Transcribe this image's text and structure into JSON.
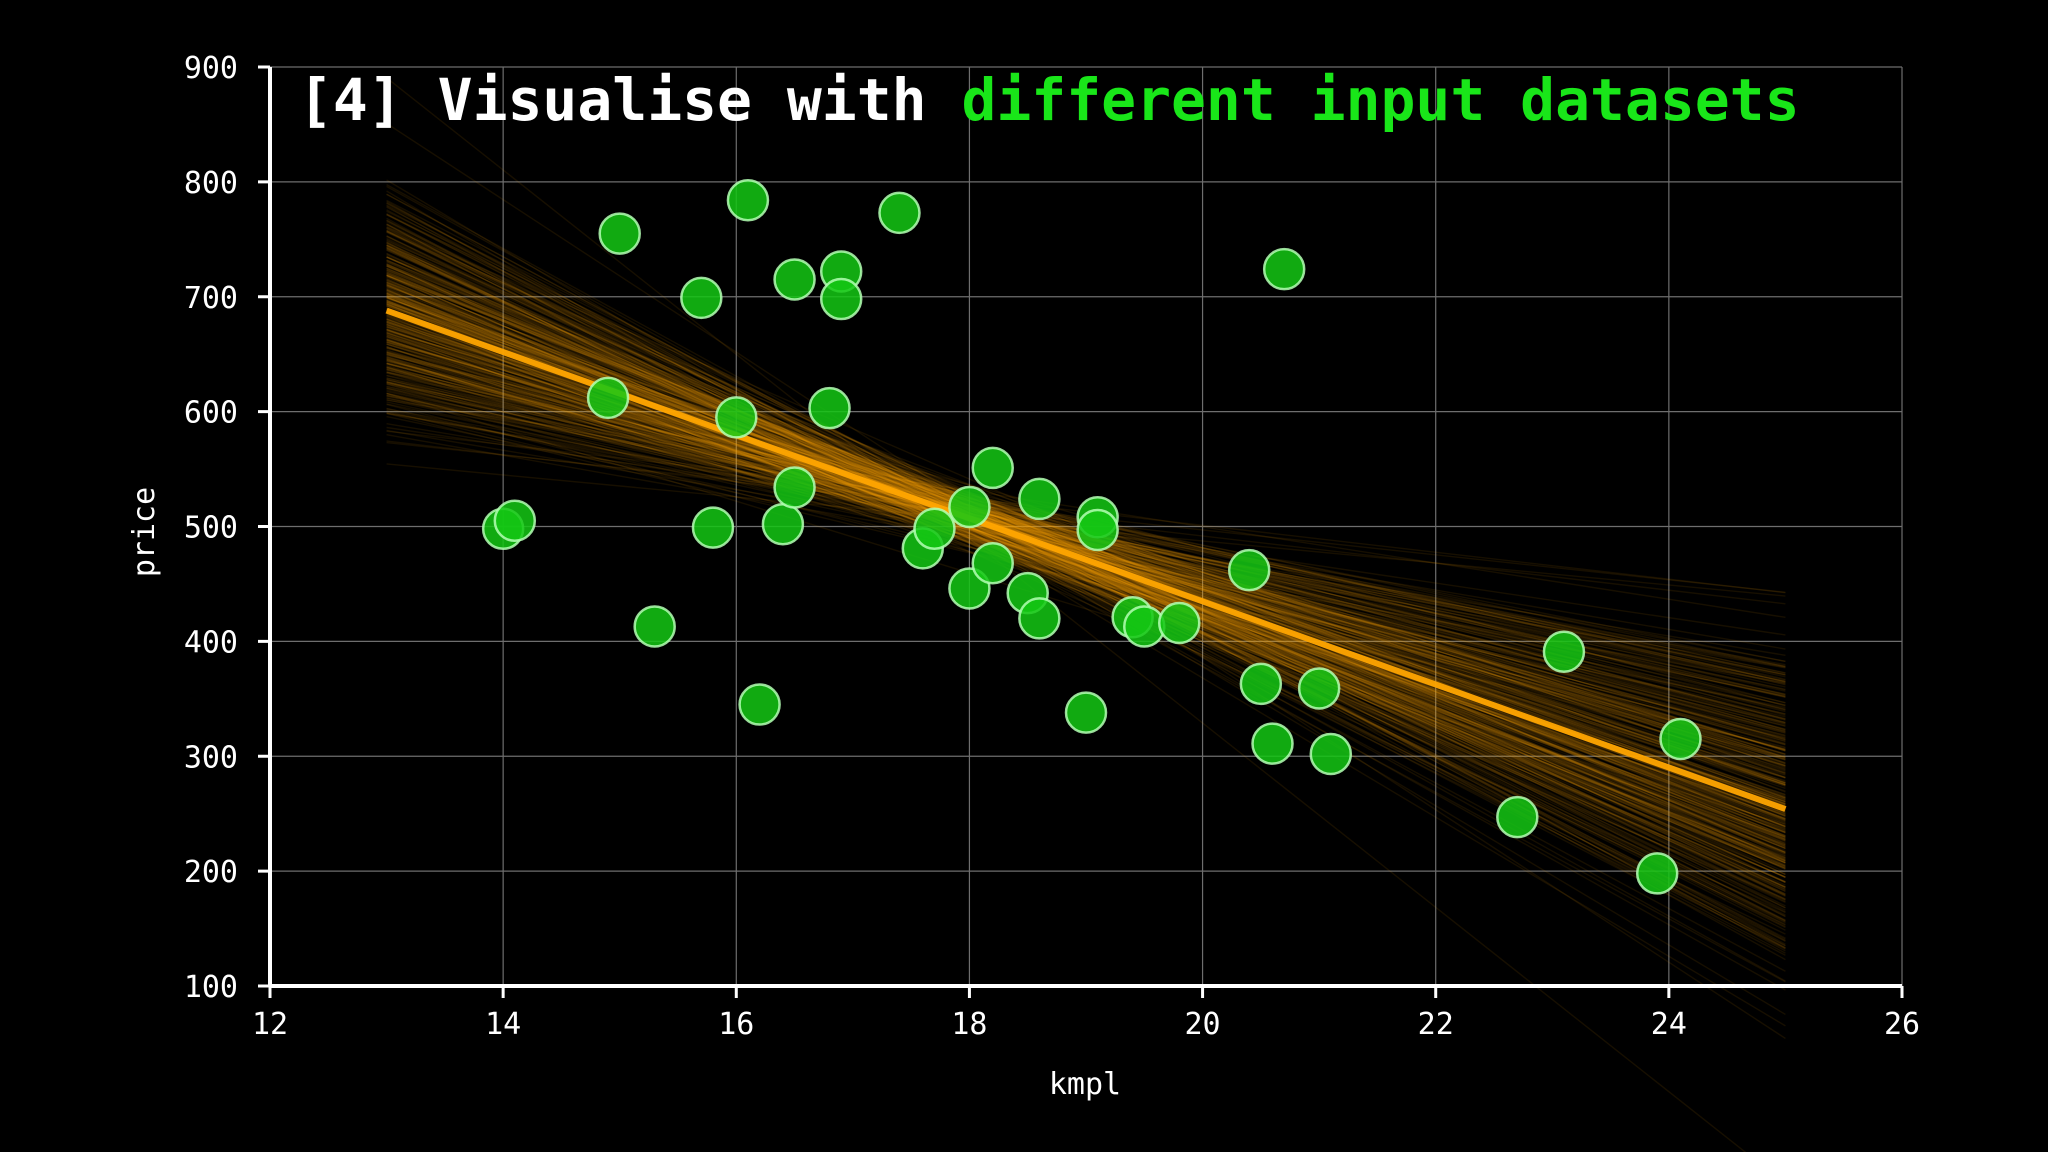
{
  "title": {
    "prefix": "[4] Visualise with ",
    "highlight": "different input datasets",
    "prefix_color": "#ffffff",
    "highlight_color": "#19e619"
  },
  "chart_data": {
    "type": "scatter",
    "xlabel": "kmpl",
    "ylabel": "price",
    "xlim": [
      12,
      26
    ],
    "ylim": [
      100,
      900
    ],
    "xticks": [
      12,
      14,
      16,
      18,
      20,
      22,
      24,
      26
    ],
    "yticks": [
      100,
      200,
      300,
      400,
      500,
      600,
      700,
      800,
      900
    ],
    "grid": true,
    "colors": {
      "points": "#14c814",
      "point_edge": "#b4ffb4",
      "fit_line": "#ffa500",
      "background": "#000000",
      "grid": "#6e6e6e"
    },
    "points": [
      {
        "x": 14.0,
        "y": 498
      },
      {
        "x": 14.1,
        "y": 505
      },
      {
        "x": 14.9,
        "y": 612
      },
      {
        "x": 15.0,
        "y": 755
      },
      {
        "x": 15.3,
        "y": 413
      },
      {
        "x": 15.7,
        "y": 699
      },
      {
        "x": 15.8,
        "y": 499
      },
      {
        "x": 16.0,
        "y": 595
      },
      {
        "x": 16.1,
        "y": 784
      },
      {
        "x": 16.2,
        "y": 345
      },
      {
        "x": 16.4,
        "y": 502
      },
      {
        "x": 16.5,
        "y": 534
      },
      {
        "x": 16.5,
        "y": 715
      },
      {
        "x": 16.8,
        "y": 603
      },
      {
        "x": 16.9,
        "y": 722
      },
      {
        "x": 16.9,
        "y": 698
      },
      {
        "x": 17.4,
        "y": 773
      },
      {
        "x": 17.6,
        "y": 481
      },
      {
        "x": 17.7,
        "y": 498
      },
      {
        "x": 18.0,
        "y": 517
      },
      {
        "x": 18.0,
        "y": 446
      },
      {
        "x": 18.2,
        "y": 551
      },
      {
        "x": 18.2,
        "y": 468
      },
      {
        "x": 18.5,
        "y": 442
      },
      {
        "x": 18.6,
        "y": 524
      },
      {
        "x": 18.6,
        "y": 420
      },
      {
        "x": 19.0,
        "y": 338
      },
      {
        "x": 19.1,
        "y": 508
      },
      {
        "x": 19.1,
        "y": 497
      },
      {
        "x": 19.4,
        "y": 421
      },
      {
        "x": 19.5,
        "y": 413
      },
      {
        "x": 19.8,
        "y": 416
      },
      {
        "x": 20.4,
        "y": 462
      },
      {
        "x": 20.5,
        "y": 363
      },
      {
        "x": 20.6,
        "y": 311
      },
      {
        "x": 20.7,
        "y": 724
      },
      {
        "x": 21.0,
        "y": 359
      },
      {
        "x": 21.1,
        "y": 302
      },
      {
        "x": 22.7,
        "y": 247
      },
      {
        "x": 23.1,
        "y": 391
      },
      {
        "x": 23.9,
        "y": 198
      },
      {
        "x": 24.1,
        "y": 315
      }
    ],
    "fit_line": {
      "x": [
        13,
        25
      ],
      "y": [
        688,
        254
      ]
    },
    "bootstrap_fits": {
      "count": 400,
      "x_range": [
        13,
        25
      ],
      "anchor_x": 18,
      "anchor_y_mean": 508,
      "anchor_y_sd": 12,
      "slope_mean": -36.2,
      "slope_sd": 10.5
    }
  }
}
